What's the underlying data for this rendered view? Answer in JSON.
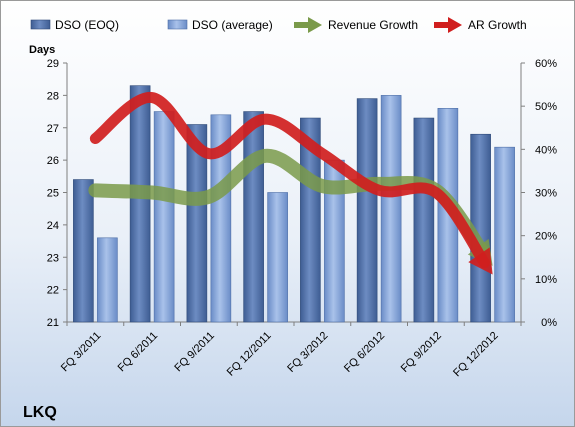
{
  "company": "LKQ",
  "chart_data": {
    "type": "bar",
    "categories": [
      "FQ 3/2011",
      "FQ 6/2011",
      "FQ 9/2011",
      "FQ 12/2011",
      "FQ 3/2012",
      "FQ 6/2012",
      "FQ 9/2012",
      "FQ 12/2012"
    ],
    "ylabel": "Days",
    "ylim": [
      21,
      29
    ],
    "yticks": [
      21,
      22,
      23,
      24,
      25,
      26,
      27,
      28,
      29
    ],
    "y2lim": [
      0,
      60
    ],
    "y2ticks": [
      "0%",
      "10%",
      "20%",
      "30%",
      "40%",
      "50%",
      "60%"
    ],
    "legend_position": "top",
    "grid": false,
    "series": [
      {
        "name": "DSO (EOQ)",
        "type": "bar",
        "axis": "left",
        "color": "#4f6fa6",
        "values": [
          25.4,
          28.3,
          27.1,
          27.5,
          27.3,
          27.9,
          27.3,
          26.8
        ]
      },
      {
        "name": "DSO (average)",
        "type": "bar",
        "axis": "left",
        "color": "#7f9ed3",
        "values": [
          23.6,
          27.5,
          27.4,
          25.0,
          26.0,
          28.0,
          27.6,
          26.4
        ]
      },
      {
        "name": "Revenue Growth",
        "type": "line",
        "axis": "right",
        "unit": "%",
        "color": "#7a9a4a",
        "values": [
          30.5,
          30,
          29,
          38.5,
          31.5,
          32,
          30.5,
          13
        ]
      },
      {
        "name": "AR Growth",
        "type": "line",
        "axis": "right",
        "unit": "%",
        "color": "#d01e1e",
        "values": [
          42.5,
          52,
          39,
          47,
          39,
          30.5,
          30,
          11
        ]
      }
    ]
  }
}
